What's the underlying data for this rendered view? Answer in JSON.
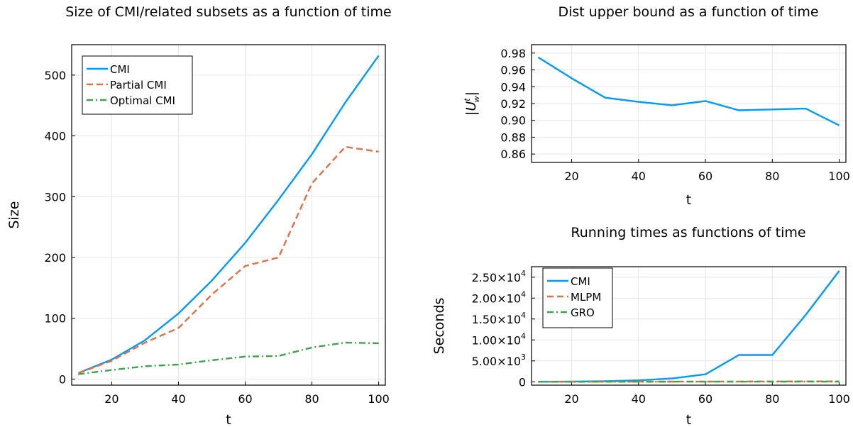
{
  "colors": {
    "series1": "#009AFA",
    "series2": "#E26F46",
    "series3": "#3DA44D"
  },
  "chart_data": [
    {
      "type": "line",
      "title": "Size of CMI/related subsets as a function of time",
      "xlabel": "t",
      "ylabel": "Size",
      "xlim": [
        8,
        102
      ],
      "ylim": [
        -10,
        550
      ],
      "x_ticks": [
        20,
        40,
        60,
        80,
        100
      ],
      "y_ticks": [
        0,
        100,
        200,
        300,
        400,
        500
      ],
      "grid": true,
      "legend": "top-left",
      "x": [
        10,
        20,
        30,
        40,
        50,
        60,
        70,
        80,
        90,
        100
      ],
      "series": [
        {
          "name": "CMI",
          "style": "solid",
          "values": [
            10,
            32,
            64,
            108,
            162,
            224,
            295,
            370,
            455,
            532
          ]
        },
        {
          "name": "Partial CMI",
          "style": "dashed",
          "values": [
            10,
            30,
            60,
            84,
            139,
            186,
            200,
            322,
            382,
            374
          ]
        },
        {
          "name": "Optimal CMI",
          "style": "dashdot",
          "values": [
            8,
            15,
            21,
            24,
            31,
            37,
            38,
            52,
            60,
            59
          ]
        }
      ]
    },
    {
      "type": "line",
      "title": "Dist upper bound as a function of time",
      "xlabel": "t",
      "ylabel": "|U",
      "ylabel_sup": "t",
      "ylabel_sub": "w",
      "ylabel_end": "|",
      "xlim": [
        8,
        102
      ],
      "ylim": [
        0.85,
        0.99
      ],
      "x_ticks": [
        20,
        40,
        60,
        80,
        100
      ],
      "y_ticks": [
        "0.86",
        "0.88",
        "0.90",
        "0.92",
        "0.94",
        "0.96",
        "0.98"
      ],
      "grid": true,
      "x": [
        10,
        20,
        30,
        40,
        50,
        60,
        70,
        80,
        90,
        100
      ],
      "series": [
        {
          "style": "solid",
          "values": [
            0.975,
            0.95,
            0.927,
            0.922,
            0.918,
            0.923,
            0.912,
            0.913,
            0.914,
            0.894
          ]
        }
      ]
    },
    {
      "type": "line",
      "title": "Running times as functions of time",
      "xlabel": "t",
      "ylabel": "Seconds",
      "xlim": [
        8,
        102
      ],
      "ylim": [
        -800,
        27500
      ],
      "x_ticks": [
        20,
        40,
        60,
        80,
        100
      ],
      "y_ticks": [
        {
          "value": 0,
          "label": "0"
        },
        {
          "value": 5000,
          "mant": "5.00×10",
          "exp": "3"
        },
        {
          "value": 10000,
          "mant": "1.00×10",
          "exp": "4"
        },
        {
          "value": 15000,
          "mant": "1.50×10",
          "exp": "4"
        },
        {
          "value": 20000,
          "mant": "2.00×10",
          "exp": "4"
        },
        {
          "value": 25000,
          "mant": "2.50×10",
          "exp": "4"
        }
      ],
      "grid": true,
      "legend": "top-left",
      "x": [
        10,
        20,
        30,
        40,
        50,
        60,
        70,
        80,
        90,
        100
      ],
      "series": [
        {
          "name": "CMI",
          "style": "solid",
          "values": [
            20,
            60,
            150,
            350,
            800,
            1800,
            6400,
            6400,
            16000,
            26500
          ]
        },
        {
          "name": "MLPM",
          "style": "dashed",
          "values": [
            10,
            20,
            30,
            40,
            50,
            60,
            70,
            80,
            90,
            100
          ]
        },
        {
          "name": "GRO",
          "style": "dashdot",
          "values": [
            5,
            10,
            15,
            20,
            25,
            30,
            35,
            40,
            45,
            50
          ]
        }
      ]
    }
  ]
}
